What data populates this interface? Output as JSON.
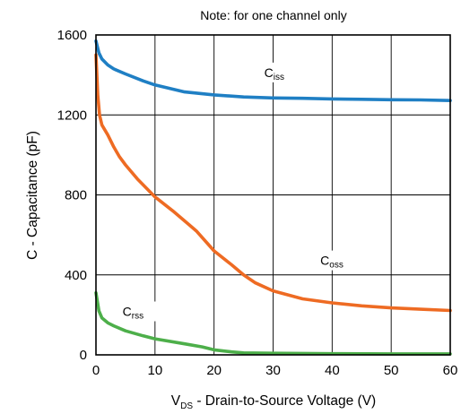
{
  "chart_data": {
    "type": "line",
    "title": "",
    "note": "Note: for one channel only",
    "xlabel": {
      "main": "V",
      "sub": "DS",
      "rest": " - Drain-to-Source Voltage (V)"
    },
    "ylabel": "C - Capacitance (pF)",
    "xlim": [
      0,
      60
    ],
    "ylim": [
      0,
      1600
    ],
    "xticks": [
      0,
      10,
      20,
      30,
      40,
      50,
      60
    ],
    "yticks": [
      0,
      400,
      800,
      1200,
      1600
    ],
    "grid": true,
    "legend": "none",
    "series": [
      {
        "label_main": "C",
        "label_sub": "iss",
        "label_at": {
          "x": 28.5,
          "y": 1390
        },
        "color": "#1f7fc4",
        "points": [
          [
            0,
            1570
          ],
          [
            0.5,
            1510
          ],
          [
            1,
            1480
          ],
          [
            2,
            1450
          ],
          [
            3,
            1430
          ],
          [
            5,
            1405
          ],
          [
            8,
            1370
          ],
          [
            10,
            1350
          ],
          [
            15,
            1315
          ],
          [
            20,
            1300
          ],
          [
            25,
            1290
          ],
          [
            30,
            1285
          ],
          [
            35,
            1283
          ],
          [
            40,
            1280
          ],
          [
            45,
            1278
          ],
          [
            50,
            1276
          ],
          [
            55,
            1275
          ],
          [
            60,
            1272
          ]
        ]
      },
      {
        "label_main": "C",
        "label_sub": "oss",
        "label_at": {
          "x": 38,
          "y": 450
        },
        "color": "#ee6b23",
        "points": [
          [
            0,
            1500
          ],
          [
            0.3,
            1300
          ],
          [
            0.6,
            1200
          ],
          [
            1,
            1150
          ],
          [
            2,
            1100
          ],
          [
            3,
            1040
          ],
          [
            4,
            990
          ],
          [
            5,
            950
          ],
          [
            7,
            880
          ],
          [
            10,
            790
          ],
          [
            13,
            720
          ],
          [
            15,
            670
          ],
          [
            17,
            620
          ],
          [
            20,
            520
          ],
          [
            23,
            450
          ],
          [
            25,
            400
          ],
          [
            27,
            360
          ],
          [
            30,
            320
          ],
          [
            35,
            280
          ],
          [
            40,
            260
          ],
          [
            45,
            245
          ],
          [
            50,
            235
          ],
          [
            55,
            228
          ],
          [
            60,
            222
          ]
        ]
      },
      {
        "label_main": "C",
        "label_sub": "rss",
        "label_at": {
          "x": 4.5,
          "y": 195
        },
        "color": "#4daf4a",
        "points": [
          [
            0,
            310
          ],
          [
            0.5,
            220
          ],
          [
            1,
            185
          ],
          [
            2,
            160
          ],
          [
            3,
            145
          ],
          [
            5,
            120
          ],
          [
            8,
            95
          ],
          [
            10,
            80
          ],
          [
            15,
            55
          ],
          [
            18,
            40
          ],
          [
            20,
            25
          ],
          [
            23,
            15
          ],
          [
            25,
            10
          ],
          [
            30,
            8
          ],
          [
            40,
            6
          ],
          [
            50,
            5
          ],
          [
            60,
            5
          ]
        ]
      }
    ]
  }
}
